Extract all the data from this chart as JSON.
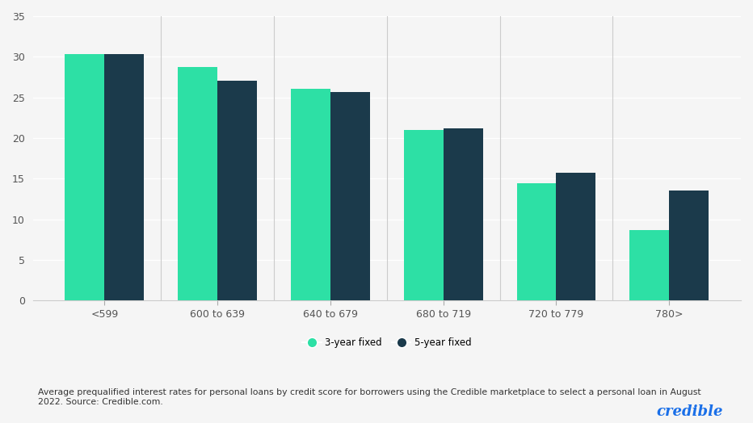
{
  "categories": [
    "<599",
    "600 to 639",
    "640 to 679",
    "680 to 719",
    "720 to 779",
    "780>"
  ],
  "three_year": [
    30.3,
    28.7,
    26.1,
    21.0,
    14.4,
    8.7
  ],
  "five_year": [
    30.3,
    27.0,
    25.7,
    21.2,
    15.7,
    13.5
  ],
  "color_3year": "#2de0a5",
  "color_5year": "#1b3a4b",
  "ylim": [
    0,
    35
  ],
  "yticks": [
    0,
    5,
    10,
    15,
    20,
    25,
    30,
    35
  ],
  "bar_width": 0.35,
  "background_color": "#f5f5f5",
  "legend_label_3year": "3-year fixed",
  "legend_label_5year": "5-year fixed",
  "caption": "Average prequalified interest rates for personal loans by credit score for borrowers using the Credible marketplace to select a personal loan in August\n2022. Source: Credible.com.",
  "brand": "credible",
  "brand_color": "#1a6fe8"
}
